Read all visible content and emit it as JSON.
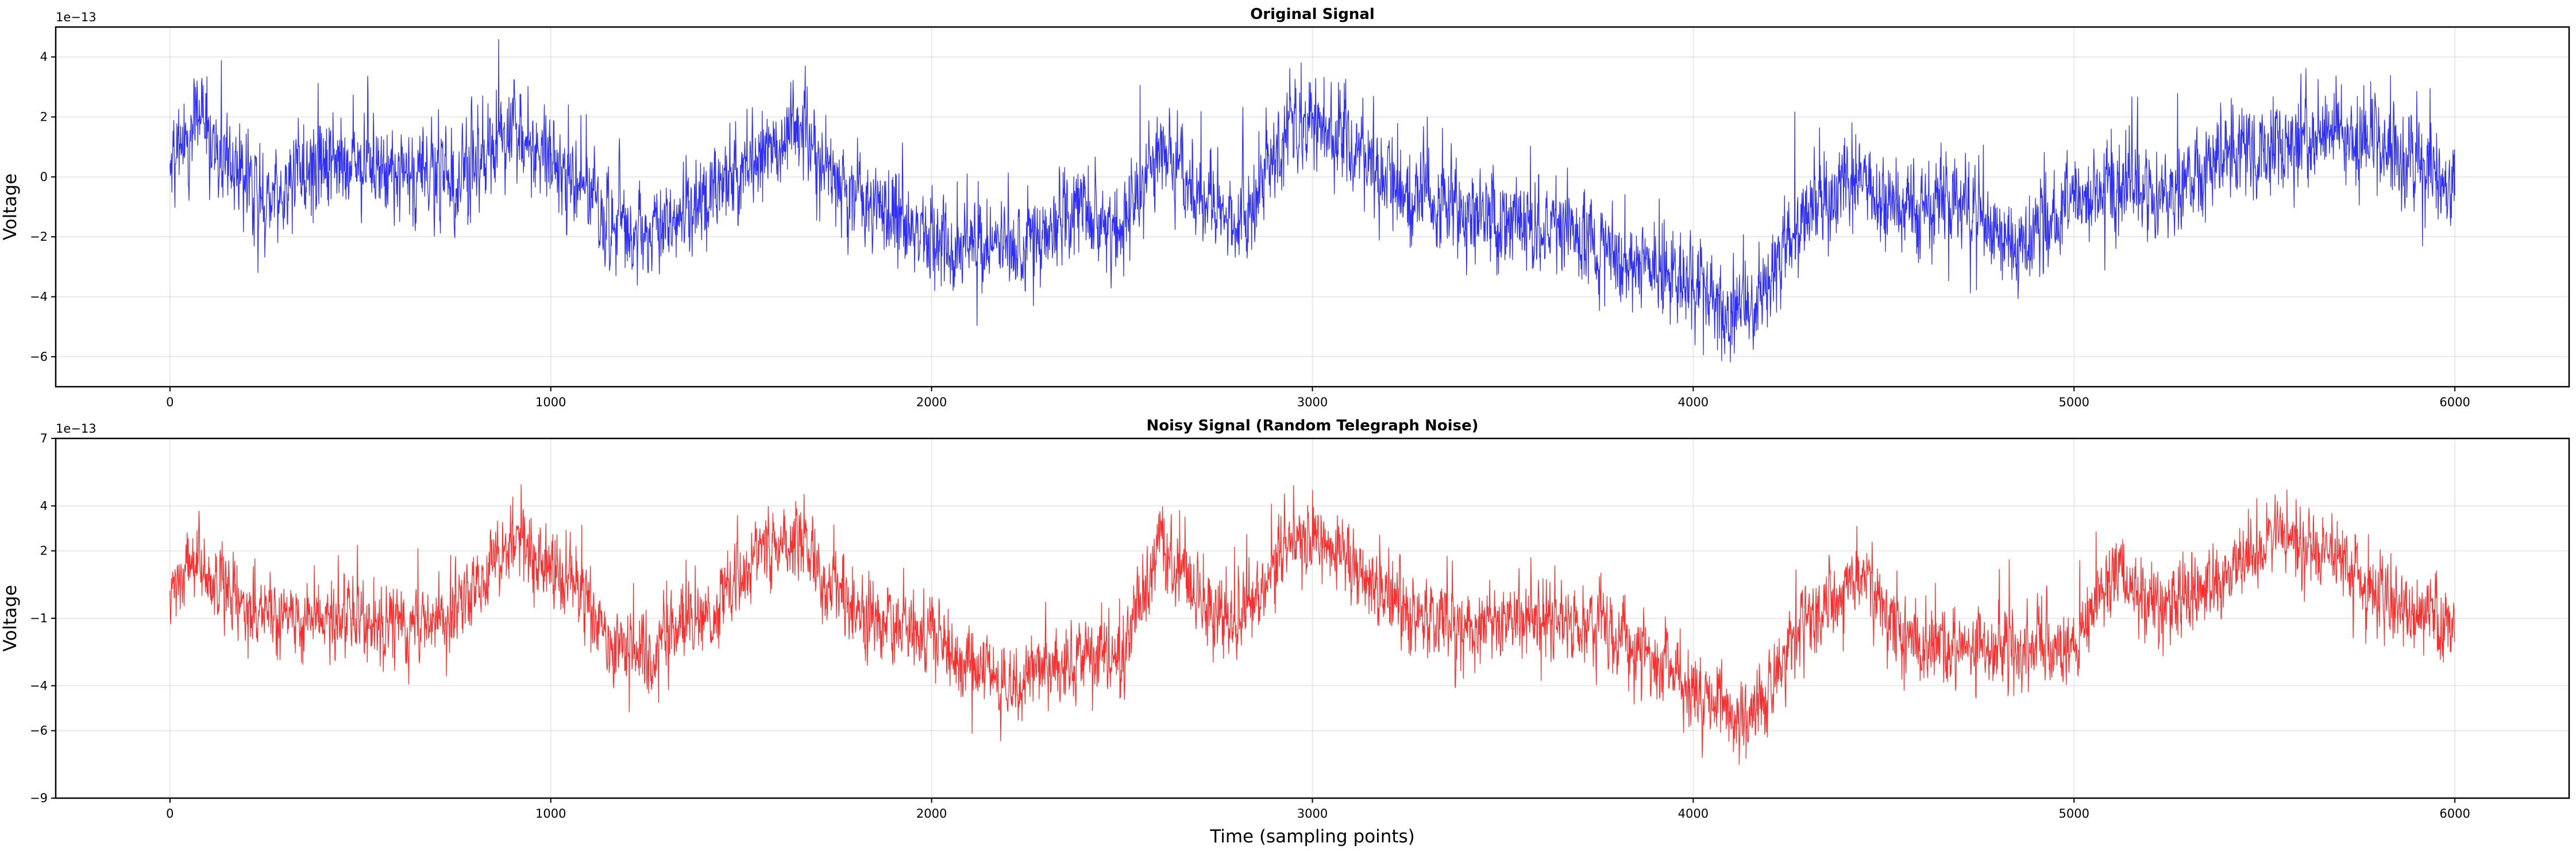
{
  "chart_data": [
    {
      "type": "line",
      "title": "Original Signal",
      "xlabel": "",
      "ylabel": "Voltage",
      "offset_text": "1e−13",
      "xlim": [
        -300,
        6300
      ],
      "ylim": [
        -7,
        5
      ],
      "x_ticks": [
        0,
        1000,
        2000,
        3000,
        4000,
        5000,
        6000
      ],
      "x_tick_labels": [
        "0",
        "1000",
        "2000",
        "3000",
        "4000",
        "5000",
        "6000"
      ],
      "y_ticks": [
        -6,
        -4,
        -2,
        0,
        2,
        4
      ],
      "y_tick_labels": [
        "−6",
        "−4",
        "−2",
        "0",
        "2",
        "4"
      ],
      "grid": true,
      "series": [
        {
          "color": "#0000ff",
          "n_samples": 6000,
          "x_range": [
            0,
            6000
          ],
          "y_range_observed": [
            -6.7,
            5.0
          ],
          "trend_x": [
            0,
            60,
            100,
            250,
            400,
            600,
            750,
            900,
            1050,
            1150,
            1250,
            1400,
            1550,
            1650,
            1800,
            2000,
            2200,
            2400,
            2500,
            2600,
            2700,
            2800,
            2950,
            3100,
            3250,
            3400,
            3550,
            3700,
            3850,
            4000,
            4150,
            4300,
            4450,
            4550,
            4700,
            4850,
            5000,
            5100,
            5250,
            5400,
            5550,
            5700,
            5850,
            6000
          ],
          "trend_y": [
            0.5,
            1.8,
            1.2,
            -0.8,
            0.5,
            0.2,
            -0.3,
            1.5,
            0.2,
            -1.2,
            -2.0,
            -0.8,
            0.8,
            1.6,
            -0.5,
            -2.0,
            -2.5,
            -1.2,
            -1.8,
            1.0,
            -0.5,
            -1.8,
            2.0,
            1.0,
            -0.8,
            -1.2,
            -1.5,
            -2.0,
            -2.8,
            -3.5,
            -4.8,
            -1.0,
            -0.2,
            -1.2,
            -0.8,
            -2.5,
            -1.0,
            -0.2,
            -1.0,
            0.8,
            1.2,
            1.6,
            0.6,
            -0.2
          ],
          "noise_sigma": 0.9
        }
      ]
    },
    {
      "type": "line",
      "title": "Noisy Signal (Random Telegraph Noise)",
      "xlabel": "Time (sampling points)",
      "ylabel": "Voltage",
      "offset_text": "1e−13",
      "xlim": [
        -300,
        6300
      ],
      "ylim": [
        -9,
        7
      ],
      "x_ticks": [
        0,
        1000,
        2000,
        3000,
        4000,
        5000,
        6000
      ],
      "x_tick_labels": [
        "0",
        "1000",
        "2000",
        "3000",
        "4000",
        "5000",
        "6000"
      ],
      "y_ticks": [
        -9,
        -6,
        -4,
        -1,
        2,
        4,
        7
      ],
      "y_tick_labels": [
        "−9",
        "−6",
        "−4",
        "−1",
        "2",
        "4",
        "7"
      ],
      "grid": true,
      "series": [
        {
          "color": "#ff0000",
          "n_samples": 6000,
          "x_range": [
            0,
            6000
          ],
          "y_range_observed": [
            -7.6,
            5.2
          ],
          "trend_x": [
            0,
            60,
            100,
            250,
            400,
            600,
            750,
            900,
            1050,
            1150,
            1250,
            1400,
            1550,
            1650,
            1800,
            2000,
            2200,
            2400,
            2500,
            2600,
            2700,
            2800,
            2950,
            3100,
            3250,
            3400,
            3550,
            3700,
            3850,
            4000,
            4150,
            4300,
            4450,
            4550,
            4700,
            4850,
            5000,
            5100,
            5250,
            5400,
            5550,
            5700,
            5850,
            6000
          ],
          "trend_y": [
            -0.5,
            1.5,
            0.8,
            -1.2,
            -1.0,
            -1.5,
            -0.8,
            2.3,
            0.8,
            -2.0,
            -2.5,
            -1.0,
            2.0,
            2.5,
            -0.8,
            -1.8,
            -4.0,
            -2.5,
            -2.8,
            2.0,
            -0.2,
            -1.5,
            2.8,
            1.5,
            -1.0,
            -1.3,
            -1.0,
            -1.2,
            -2.5,
            -4.5,
            -5.6,
            -1.0,
            1.0,
            -2.0,
            -2.2,
            -2.5,
            -2.0,
            1.0,
            -0.5,
            0.8,
            2.8,
            1.5,
            -0.5,
            -1.2
          ],
          "noise_sigma": 1.0
        }
      ]
    }
  ]
}
